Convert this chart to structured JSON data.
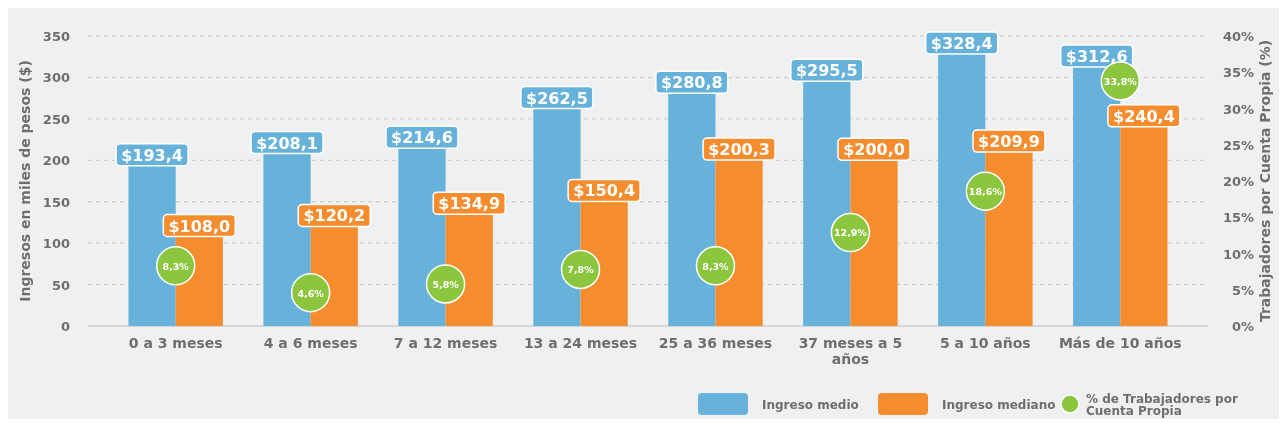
{
  "chart_data": {
    "type": "bar",
    "categories": [
      "0 a 3 meses",
      "4 a 6 meses",
      "7 a 12 meses",
      "13 a 24 meses",
      "25 a 36 meses",
      "37 meses a 5 años",
      "5 a 10 años",
      "Más de 10 años"
    ],
    "ylabel": "Ingresos en miles de pesos ($)",
    "y2label": "Trabajadores por Cuenta Propia (%)",
    "ylim": [
      0,
      350
    ],
    "yticks": [
      0,
      50,
      100,
      150,
      200,
      250,
      300,
      350
    ],
    "y2lim": [
      0,
      40
    ],
    "y2ticks": [
      {
        "value": 0,
        "label": "0%"
      },
      {
        "value": 5,
        "label": "5%"
      },
      {
        "value": 10,
        "label": "10%"
      },
      {
        "value": 15,
        "label": "15%"
      },
      {
        "value": 20,
        "label": "20%"
      },
      {
        "value": 25,
        "label": "25%"
      },
      {
        "value": 30,
        "label": "30%"
      },
      {
        "value": 35,
        "label": "35%"
      },
      {
        "value": 40,
        "label": "40%"
      }
    ],
    "grid": "y",
    "legend": "bottom right",
    "series": [
      {
        "name": "Ingreso medio",
        "color": "#67b2da",
        "values": [
          193.4,
          208.1,
          214.6,
          262.5,
          280.8,
          295.5,
          328.4,
          312.6
        ],
        "value_labels": [
          "$193,4",
          "$208,1",
          "$214,6",
          "$262,5",
          "$280,8",
          "$295,5",
          "$328,4",
          "$312,6"
        ]
      },
      {
        "name": "Ingreso mediano",
        "color": "#f58d2e",
        "values": [
          108.0,
          120.2,
          134.9,
          150.4,
          200.3,
          200.0,
          209.9,
          240.4
        ],
        "value_labels": [
          "$108,0",
          "$120,2",
          "$134,9",
          "$150,4",
          "$200,3",
          "$200,0",
          "$209,9",
          "$240,4"
        ]
      },
      {
        "name": "% de Trabajadores por Cuenta Propia",
        "type": "scatter",
        "axis": "y2",
        "marker": "circle",
        "color": "#8cc63f",
        "values": [
          8.3,
          4.6,
          5.8,
          7.8,
          8.3,
          12.9,
          18.6,
          33.8
        ],
        "value_labels": [
          "8,3%",
          "4,6%",
          "5,8%",
          "7,8%",
          "8,3%",
          "12,9%",
          "18,6%",
          "33,8%"
        ]
      }
    ]
  }
}
